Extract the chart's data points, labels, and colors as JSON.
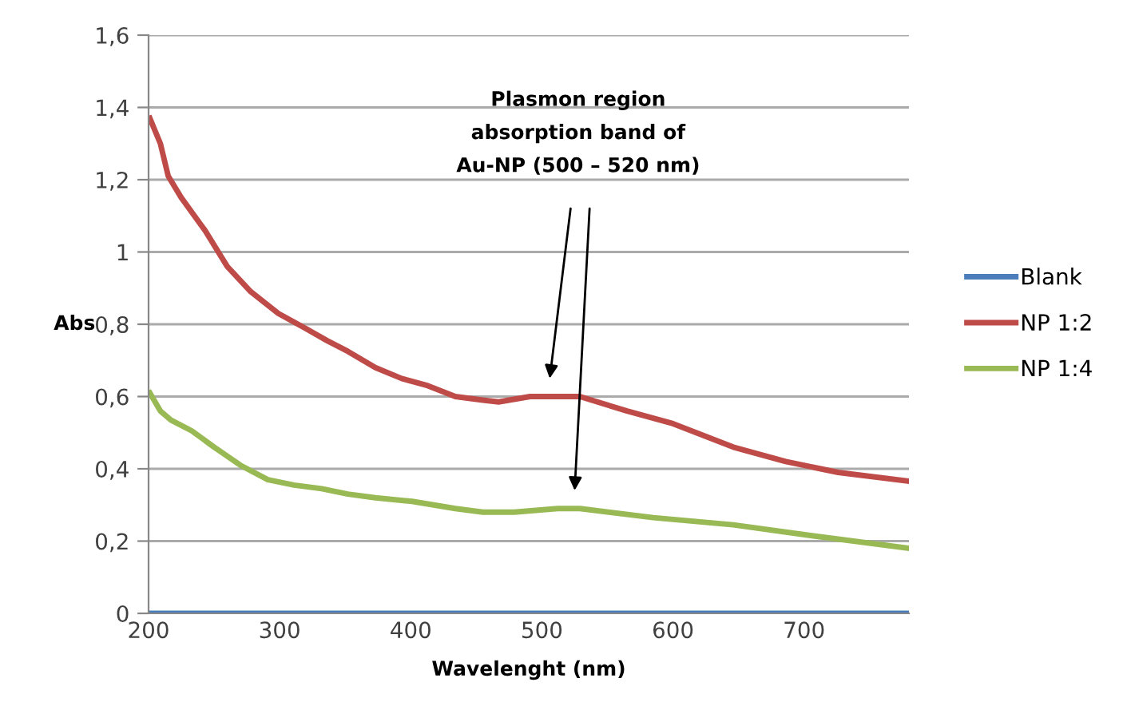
{
  "chart_data": {
    "type": "line",
    "xlabel": "Wavelenght (nm)",
    "ylabel": "Abs",
    "xlim": [
      200,
      780
    ],
    "xticks": [
      200,
      300,
      400,
      500,
      600,
      700
    ],
    "ylim": [
      0,
      1.6
    ],
    "yticks": [
      0,
      {
        "value": 0.2,
        "label": "0,2"
      },
      {
        "value": 0.4,
        "label": "0,4"
      },
      {
        "value": 0.6,
        "label": "0,6"
      },
      {
        "value": 0.8,
        "label": "0,8"
      },
      1,
      {
        "value": 1.2,
        "label": "1,2"
      },
      {
        "value": 1.4,
        "label": "1,4"
      },
      {
        "value": 1.6,
        "label": "1,6"
      }
    ],
    "grid": "y",
    "legend": "right",
    "marker": "none",
    "line_style": "solid",
    "series": [
      {
        "name": "Blank",
        "color": "#4a7ebb",
        "x": [
          200,
          250,
          300,
          350,
          360,
          400,
          500,
          600,
          700,
          780
        ],
        "values": [
          0.0,
          0.0,
          0.0,
          0.0,
          0.0,
          0.0,
          0.0,
          0.0,
          0.0,
          0.0
        ]
      },
      {
        "name": "NP 1:2",
        "color": "#be4b48",
        "x": [
          201,
          209,
          215,
          225,
          243,
          260,
          278,
          299,
          319,
          336,
          352,
          373,
          393,
          413,
          434,
          455,
          467,
          491,
          512,
          529,
          565,
          600,
          646,
          686,
          726,
          780
        ],
        "values": [
          1.37,
          1.3,
          1.21,
          1.15,
          1.06,
          0.96,
          0.89,
          0.83,
          0.79,
          0.755,
          0.725,
          0.68,
          0.65,
          0.63,
          0.6,
          0.59,
          0.585,
          0.6,
          0.6,
          0.6,
          0.56,
          0.525,
          0.46,
          0.42,
          0.39,
          0.366
        ]
      },
      {
        "name": "NP 1:4",
        "color": "#98b954",
        "x": [
          201,
          209,
          217,
          233,
          250,
          270,
          291,
          311,
          332,
          352,
          373,
          401,
          434,
          455,
          479,
          512,
          529,
          585,
          646,
          706,
          780
        ],
        "values": [
          0.61,
          0.56,
          0.535,
          0.505,
          0.46,
          0.41,
          0.37,
          0.355,
          0.345,
          0.33,
          0.32,
          0.31,
          0.29,
          0.28,
          0.28,
          0.29,
          0.29,
          0.265,
          0.245,
          0.215,
          0.18
        ]
      }
    ],
    "annotations": [
      "Plasmon region\nabsorption band of\nAu-NP (500 – 520 nm)"
    ]
  }
}
